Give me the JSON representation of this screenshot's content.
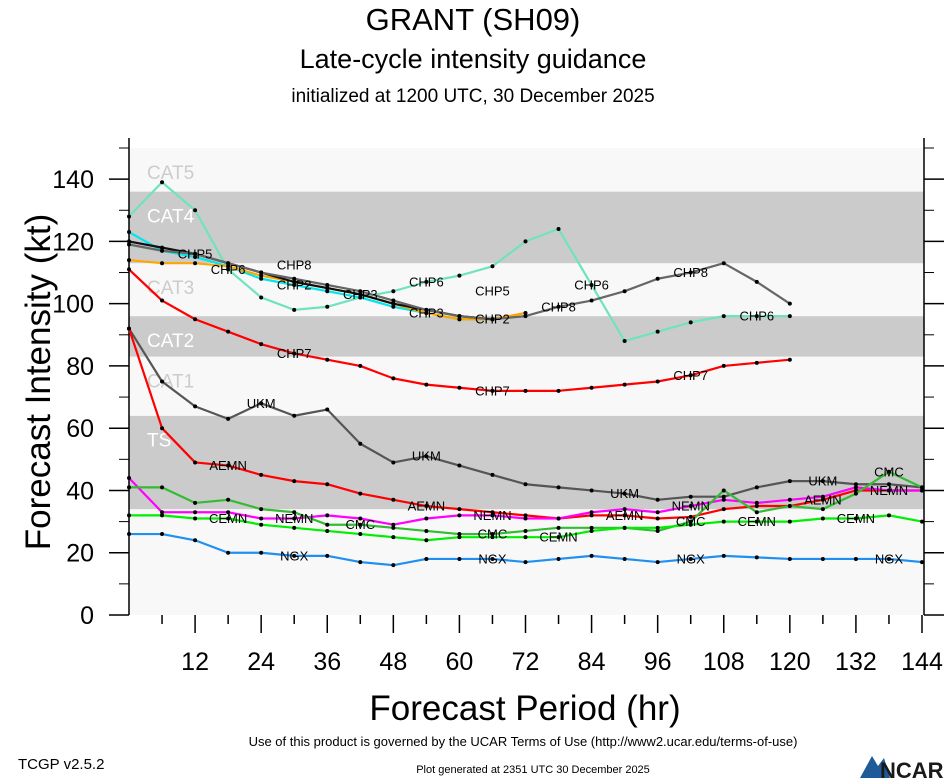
{
  "header": {
    "title": "GRANT (SH09)",
    "subtitle": "Late-cycle intensity guidance",
    "initialized": "initialized at 1200 UTC, 30 December 2025"
  },
  "footer": {
    "version": "TCGP v2.5.2",
    "terms": "Use of this product is governed by the UCAR Terms of Use (http://www2.ucar.edu/terms-of-use)",
    "generated": "Plot generated at 2351 UTC   30 December 2025",
    "logo_text": "NCAR"
  },
  "chart_data": {
    "type": "line",
    "xlabel": "Forecast Period (hr)",
    "ylabel": "Forecast Intensity (kt)",
    "xlim": [
      0,
      144
    ],
    "ylim": [
      0,
      150
    ],
    "xticks": [
      12,
      24,
      36,
      48,
      60,
      72,
      84,
      96,
      108,
      120,
      132,
      144
    ],
    "yticks": [
      0,
      20,
      40,
      60,
      80,
      100,
      120,
      140
    ],
    "x_step_hours": 6,
    "grid": false,
    "intensity_bands": [
      {
        "label": "",
        "min": 0,
        "max": 34,
        "shade": "light"
      },
      {
        "label": "TS",
        "min": 34,
        "max": 64,
        "shade": "dark"
      },
      {
        "label": "CAT1",
        "min": 64,
        "max": 83,
        "shade": "light"
      },
      {
        "label": "CAT2",
        "min": 83,
        "max": 96,
        "shade": "dark"
      },
      {
        "label": "CAT3",
        "min": 96,
        "max": 113,
        "shade": "light"
      },
      {
        "label": "CAT4",
        "min": 113,
        "max": 136,
        "shade": "dark"
      },
      {
        "label": "CAT5",
        "min": 136,
        "max": 150,
        "shade": "light"
      }
    ],
    "band_colors": {
      "light": "#f8f8f8",
      "dark": "#cbcbcb",
      "label_on_light": "#cccccc",
      "label_on_dark": "#ffffff"
    },
    "series": [
      {
        "name": "CHP6",
        "color": "#6fe3c0",
        "values": [
          128,
          139,
          130,
          111,
          102,
          98,
          99,
          102,
          104,
          107,
          109,
          112,
          120,
          124,
          106,
          88,
          91,
          94,
          96,
          96,
          96
        ]
      },
      {
        "name": "CHP2",
        "color": "#00e5ee",
        "values": [
          123,
          117,
          115,
          112,
          108,
          106,
          104,
          102,
          99,
          97,
          95,
          95
        ]
      },
      {
        "name": "CHP3",
        "color": "#ffa500",
        "values": [
          114,
          113,
          113,
          112,
          109,
          107,
          105,
          103,
          100,
          97,
          95,
          95,
          97
        ]
      },
      {
        "name": "CHP5",
        "color": "#111111",
        "values": [
          120,
          118,
          116,
          113,
          110,
          107,
          105,
          103,
          100,
          98,
          96,
          95
        ]
      },
      {
        "name": "CHP8",
        "color": "#666666",
        "values": [
          119,
          117,
          116,
          113,
          110,
          108,
          106,
          104,
          101,
          98,
          96,
          95,
          96,
          99,
          101,
          104,
          108,
          110,
          113,
          107,
          100
        ]
      },
      {
        "name": "CHP7",
        "color": "#ff0000",
        "values": [
          111,
          101,
          95,
          91,
          87,
          84,
          82,
          80,
          76,
          74,
          73,
          72,
          72,
          72,
          73,
          74,
          75,
          77,
          80,
          81,
          82
        ]
      },
      {
        "name": "UKM",
        "color": "#555555",
        "values": [
          92,
          75,
          67,
          63,
          68,
          64,
          66,
          55,
          49,
          51,
          48,
          45,
          42,
          41,
          40,
          39,
          37,
          38,
          38,
          41,
          43,
          43,
          42,
          42,
          41
        ]
      },
      {
        "name": "AEMN",
        "color": "#ff0000",
        "values": [
          92,
          60,
          49,
          48,
          45,
          43,
          42,
          39,
          37,
          35,
          34,
          33,
          32,
          31,
          32,
          32,
          31,
          31.5,
          34,
          35,
          35,
          37,
          40,
          40,
          40
        ]
      },
      {
        "name": "NEMN",
        "color": "#ff00ff",
        "values": [
          44,
          33,
          33,
          33,
          31,
          31,
          32,
          31,
          29,
          31,
          32,
          32,
          31,
          31,
          33,
          34,
          33,
          35,
          37,
          36,
          37,
          38,
          41,
          40,
          40
        ]
      },
      {
        "name": "CMC",
        "color": "#33bb33",
        "values": [
          41,
          41,
          36,
          37,
          34,
          33,
          29,
          29,
          28,
          27,
          26,
          26,
          27,
          28,
          28,
          28,
          27,
          30,
          40,
          33,
          35,
          34,
          39,
          46,
          41
        ]
      },
      {
        "name": "CEMN",
        "color": "#00ee00",
        "values": [
          32,
          32,
          31,
          31,
          29,
          28,
          27,
          26,
          25,
          24,
          25,
          25,
          25,
          25,
          27,
          28,
          28,
          29,
          30,
          30,
          30,
          31,
          31,
          32,
          30
        ]
      },
      {
        "name": "NGX",
        "color": "#2090f0",
        "values": [
          26,
          26,
          24,
          20,
          20,
          19,
          19,
          17,
          16,
          18,
          18,
          18,
          17,
          18,
          19,
          18,
          17,
          18,
          19,
          18.5,
          18,
          18,
          18,
          18,
          17
        ]
      }
    ]
  }
}
